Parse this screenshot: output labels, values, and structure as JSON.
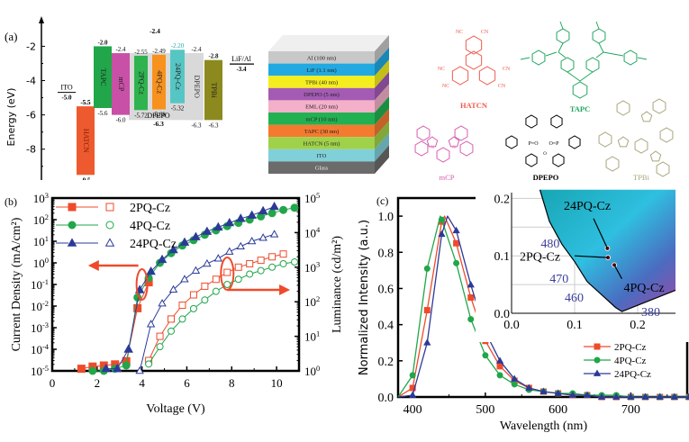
{
  "chart_data": [
    {
      "panel": "(a)",
      "type": "bar",
      "subtype": "energy-level-diagram",
      "ylabel": "Energy (eV)",
      "ylim": [
        -9.8,
        -1.4
      ],
      "yticks": [
        -2,
        -4,
        -6,
        -8
      ],
      "levels": [
        {
          "name": "ITO",
          "kind": "line",
          "value": -5.0,
          "label": "-5.0",
          "color": "#000000"
        },
        {
          "name": "HATCN",
          "top": -5.5,
          "bottom": -9.5,
          "top_label": "-5.5",
          "bottom_label": "-9.5",
          "color": "#ee5a2f"
        },
        {
          "name": "TAPC",
          "top": -2.0,
          "bottom": -5.6,
          "top_label": "-2.0",
          "bottom_label": "-5.6",
          "color": "#21a64a"
        },
        {
          "name": "mCP",
          "top": -2.4,
          "bottom": -6.0,
          "top_label": "-2.4",
          "bottom_label": "-6.0",
          "color": "#c850a6"
        },
        {
          "name": "DPEPO",
          "top": -2.4,
          "bottom": -6.3,
          "top_label": "-2.4",
          "bottom_label": "-6.3",
          "color": "#d9d9d9",
          "role": "host"
        },
        {
          "name": "2PQ-Cz",
          "top": -2.55,
          "bottom": -5.72,
          "top_label": "-2.55",
          "bottom_label": "-5.72",
          "color": "#2fb34f"
        },
        {
          "name": "4PQ-Cz",
          "top": -2.49,
          "bottom": -5.68,
          "top_label": "-2.49",
          "bottom_label": "-5.68",
          "color": "#f7921e"
        },
        {
          "name": "24PQ-Cz",
          "top": -2.2,
          "bottom": -5.32,
          "top_label": "-2.20",
          "bottom_label": "-5.32",
          "color": "#56c6c4"
        },
        {
          "name": "DPEPO",
          "top": -2.4,
          "bottom": -6.3,
          "top_label": "-2.4",
          "bottom_label": "-6.3",
          "color": "#d9d9d9"
        },
        {
          "name": "TPBi",
          "top": -2.8,
          "bottom": -6.3,
          "top_label": "-2.8",
          "bottom_label": "-6.3",
          "color": "#8c8a1e"
        },
        {
          "name": "LiF/Al",
          "kind": "line",
          "value": -3.4,
          "label": "-3.4",
          "color": "#000000"
        }
      ],
      "annotations": [
        "-2.4",
        "DPEPO",
        "-6.3"
      ]
    },
    {
      "panel": "device-stack",
      "type": "table",
      "layers": [
        {
          "label": "Al (100 nm)",
          "color": "#c8c8c8"
        },
        {
          "label": "LiF (1.1 nm)",
          "color": "#22a9e1"
        },
        {
          "label": "TPBi (40 nm)",
          "color": "#f5ee1e"
        },
        {
          "label": "DPEPO (5 nm)",
          "color": "#a35bb4"
        },
        {
          "label": "EML (20 nm)",
          "color": "#f4b0c8"
        },
        {
          "label": "mCP (10 nm)",
          "color": "#22b152"
        },
        {
          "label": "TAPC (30 nm)",
          "color": "#f47a30"
        },
        {
          "label": "HATCN (5 nm)",
          "color": "#9fd14a"
        },
        {
          "label": "ITO",
          "color": "#7fd0d8"
        },
        {
          "label": "Glass",
          "color": "#6b6b6b"
        }
      ]
    },
    {
      "panel": "molecules",
      "type": "table",
      "structures": [
        {
          "name": "HATCN",
          "color": "#ee5a4f",
          "groups": [
            "NC",
            "CN",
            "NC",
            "CN",
            "NC",
            "CN"
          ]
        },
        {
          "name": "TAPC",
          "color": "#21a65f"
        },
        {
          "name": "mCP",
          "color": "#d65cb0"
        },
        {
          "name": "DPEPO",
          "color": "#000000",
          "groups": [
            "P=O",
            "O=P",
            "O"
          ]
        },
        {
          "name": "TPBi",
          "color": "#a9a57a"
        }
      ]
    },
    {
      "panel": "(b)",
      "type": "scatter",
      "subtype": "J-V-L log-log dual axis",
      "xlabel": "Voltage (V)",
      "ylabel": "Current Density (mA/cm²)",
      "ylabel_right": "Luminance (cd/m²)",
      "xlim": [
        0,
        11
      ],
      "xticks": [
        0,
        2,
        4,
        6,
        8,
        10
      ],
      "ylim_log10": [
        -5,
        3
      ],
      "yticks_left": [
        "10^3",
        "10^2",
        "10^1",
        "10^0",
        "10^-1",
        "10^-2",
        "10^-3",
        "10^-4",
        "10^-5"
      ],
      "ylim_right_log10": [
        0,
        5
      ],
      "yticks_right": [
        "10^5",
        "10^4",
        "10^3",
        "10^2",
        "10^1",
        "10^0"
      ],
      "legend": "top-left",
      "series": [
        {
          "name": "2PQ-Cz",
          "axis": "left",
          "marker": "filled-square",
          "color": "#ee4b2b",
          "x": [
            1.3,
            1.8,
            2.3,
            2.8,
            3.3,
            3.8,
            4.3
          ],
          "log10_y": [
            -4.9,
            -4.8,
            -4.75,
            -4.7,
            -4.55,
            -2.1,
            -0.9
          ]
        },
        {
          "name": "4PQ-Cz",
          "axis": "left",
          "marker": "filled-circle",
          "color": "#21a64a",
          "x": [
            1.8,
            2.3,
            2.8,
            3.3,
            3.8,
            4.3,
            4.8,
            5.3,
            5.8,
            6.3,
            6.8,
            7.3,
            7.8,
            8.3,
            8.8,
            9.3,
            9.8,
            10.3,
            10.8
          ],
          "log10_y": [
            -5.0,
            -5.0,
            -4.9,
            -4.75,
            -1.6,
            -0.7,
            0.0,
            0.45,
            0.8,
            1.05,
            1.3,
            1.5,
            1.7,
            1.85,
            2.0,
            2.15,
            2.3,
            2.45,
            2.55
          ]
        },
        {
          "name": "24PQ-Cz",
          "axis": "left",
          "marker": "filled-triangle",
          "color": "#2b3a98",
          "x": [
            2.4,
            2.9,
            3.4,
            3.9,
            4.4,
            4.9,
            5.4,
            5.9,
            6.4,
            6.9,
            7.4,
            7.9,
            8.4,
            8.9,
            9.4,
            9.9
          ],
          "log10_y": [
            -4.9,
            -4.9,
            -4.0,
            -1.25,
            -0.4,
            0.15,
            0.6,
            0.95,
            1.2,
            1.45,
            1.65,
            1.85,
            2.05,
            2.2,
            2.4,
            2.6
          ]
        },
        {
          "name": "2PQ-Cz",
          "axis": "right",
          "marker": "open-square",
          "color": "#ee4b2b",
          "x": [
            4.3,
            4.8,
            5.3,
            5.8,
            6.3,
            6.8,
            7.3,
            7.8,
            8.3,
            8.8,
            9.3,
            9.8,
            10.3
          ],
          "log10_y": [
            0.3,
            1.0,
            1.5,
            1.9,
            2.2,
            2.45,
            2.65,
            2.85,
            3.0,
            3.1,
            3.2,
            3.3,
            3.38
          ]
        },
        {
          "name": "4PQ-Cz",
          "axis": "right",
          "marker": "open-circle",
          "color": "#21a64a",
          "x": [
            4.3,
            4.8,
            5.3,
            5.8,
            6.3,
            6.8,
            7.3,
            7.8,
            8.3,
            8.8,
            9.3,
            9.8,
            10.3,
            10.8
          ],
          "log10_y": [
            0.2,
            0.7,
            1.15,
            1.5,
            1.8,
            2.05,
            2.3,
            2.5,
            2.65,
            2.8,
            2.9,
            3.0,
            3.1,
            3.15
          ]
        },
        {
          "name": "24PQ-Cz",
          "axis": "right",
          "marker": "open-triangle",
          "color": "#2b3a98",
          "x": [
            3.9,
            4.4,
            4.9,
            5.4,
            5.9,
            6.4,
            6.9,
            7.4,
            7.9,
            8.4,
            8.9,
            9.4,
            9.9
          ],
          "log10_y": [
            0.0,
            1.35,
            1.95,
            2.35,
            2.65,
            2.9,
            3.1,
            3.25,
            3.45,
            3.6,
            3.75,
            3.85,
            3.95
          ]
        }
      ],
      "annotations": [
        {
          "type": "ellipse",
          "x": 4.0,
          "log10_y": -1.0,
          "arrow": "left"
        },
        {
          "type": "ellipse",
          "x": 7.8,
          "log10_y": -1.2,
          "arrow": "right"
        }
      ]
    },
    {
      "panel": "(c)",
      "type": "line",
      "xlabel": "Wavelength (nm)",
      "ylabel": "Normalized Intensity (a.u.)",
      "xlim": [
        380,
        780
      ],
      "xticks": [
        400,
        500,
        600,
        700
      ],
      "ylim": [
        0,
        1.1
      ],
      "yticks": [
        0.0,
        0.2,
        0.4,
        0.6,
        0.8,
        1.0
      ],
      "legend": "bottom-right",
      "series": [
        {
          "name": "2PQ-Cz",
          "marker": "square",
          "color": "#ee4b2b",
          "x": [
            400,
            420,
            440,
            460,
            480,
            500,
            520,
            540,
            560,
            580,
            600,
            620,
            640,
            660,
            680,
            700,
            720,
            740,
            760,
            780
          ],
          "values": [
            0.05,
            0.48,
            0.97,
            0.85,
            0.55,
            0.31,
            0.17,
            0.09,
            0.05,
            0.03,
            0.02,
            0.01,
            0.01,
            0.0,
            0.0,
            0.0,
            0.0,
            0.0,
            0.0,
            0.0
          ]
        },
        {
          "name": "4PQ-Cz",
          "marker": "circle",
          "color": "#21a64a",
          "x": [
            400,
            420,
            440,
            460,
            480,
            500,
            520,
            540,
            560,
            580,
            600,
            620,
            640,
            660,
            680,
            700,
            720,
            740,
            760,
            780
          ],
          "values": [
            0.12,
            0.71,
            0.98,
            0.74,
            0.43,
            0.23,
            0.12,
            0.07,
            0.04,
            0.03,
            0.02,
            0.02,
            0.01,
            0.01,
            0.01,
            0.0,
            0.0,
            0.0,
            0.0,
            0.0
          ]
        },
        {
          "name": "24PQ-Cz",
          "marker": "triangle",
          "color": "#2b3a98",
          "x": [
            400,
            420,
            440,
            460,
            480,
            500,
            520,
            540,
            560,
            580,
            600,
            620,
            640,
            660,
            680,
            700,
            720,
            740,
            760,
            780
          ],
          "values": [
            0.01,
            0.3,
            0.9,
            0.92,
            0.62,
            0.36,
            0.2,
            0.1,
            0.05,
            0.03,
            0.02,
            0.01,
            0.01,
            0.0,
            0.0,
            0.0,
            0.0,
            0.0,
            0.0,
            0.0
          ]
        }
      ],
      "peaks_nm": {
        "2PQ-Cz": 444,
        "4PQ-Cz": 438,
        "24PQ-Cz": 448
      },
      "inset": {
        "type": "cie-chromaticity",
        "xlim": [
          0.0,
          0.26
        ],
        "ylim": [
          0.0,
          0.21
        ],
        "xticks": [
          0.0,
          0.1,
          0.2
        ],
        "yticks": [
          0.0,
          0.1,
          0.2
        ],
        "wavelength_labels": [
          "480",
          "470",
          "460",
          "380"
        ],
        "points": [
          {
            "name": "24PQ-Cz",
            "x": 0.152,
            "y": 0.113
          },
          {
            "name": "2PQ-Cz",
            "x": 0.153,
            "y": 0.097
          },
          {
            "name": "4PQ-Cz",
            "x": 0.163,
            "y": 0.084
          }
        ]
      }
    }
  ],
  "labels": {
    "panel_a": "(a)",
    "panel_b": "(b)",
    "panel_c": "(c)"
  }
}
